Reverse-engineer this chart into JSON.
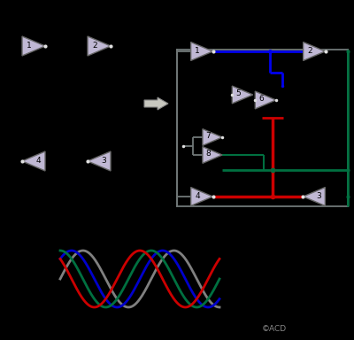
{
  "bg_color": "#000000",
  "inv_fill": "#c0b8d4",
  "inv_edge": "#666666",
  "wire_gray": "#707878",
  "wire_blue": "#0000ee",
  "wire_red": "#cc0000",
  "wire_green": "#007040",
  "dot_white": "#e0e0e0",
  "arrow_fill": "#c8c8c0",
  "arrow_edge": "#888888",
  "copyright": "©ACD",
  "sine_colors": [
    "#808080",
    "#0000cc",
    "#007040",
    "#cc0000"
  ],
  "sine_phases_deg": [
    0,
    45,
    90,
    135
  ]
}
